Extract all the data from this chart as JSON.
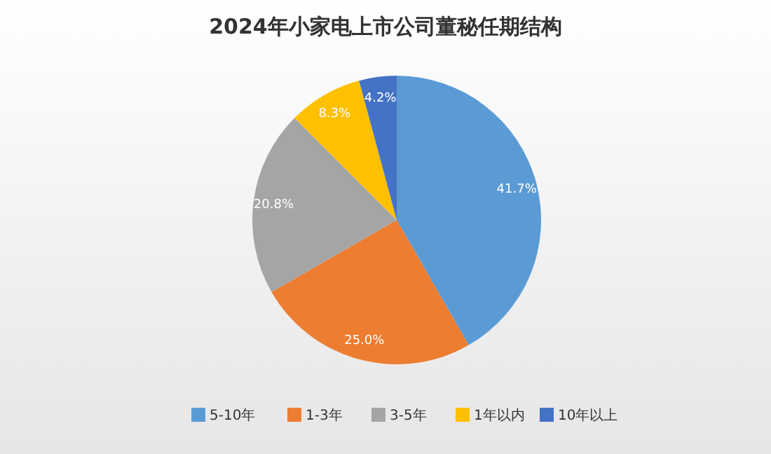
{
  "chart_data": {
    "type": "pie",
    "title": "2024年小家电上市公司董秘任期结构",
    "categories": [
      "5-10年",
      "1-3年",
      "3-5年",
      "1年以内",
      "10年以上"
    ],
    "values": [
      41.7,
      25.0,
      20.8,
      8.3,
      4.2
    ],
    "colors": [
      "#5b9bd5",
      "#ed7d31",
      "#a5a5a5",
      "#ffc000",
      "#4472c4"
    ],
    "value_labels": [
      "41.7%",
      "25.0%",
      "20.8%",
      "8.3%",
      "4.2%"
    ],
    "legend": "bottom"
  }
}
